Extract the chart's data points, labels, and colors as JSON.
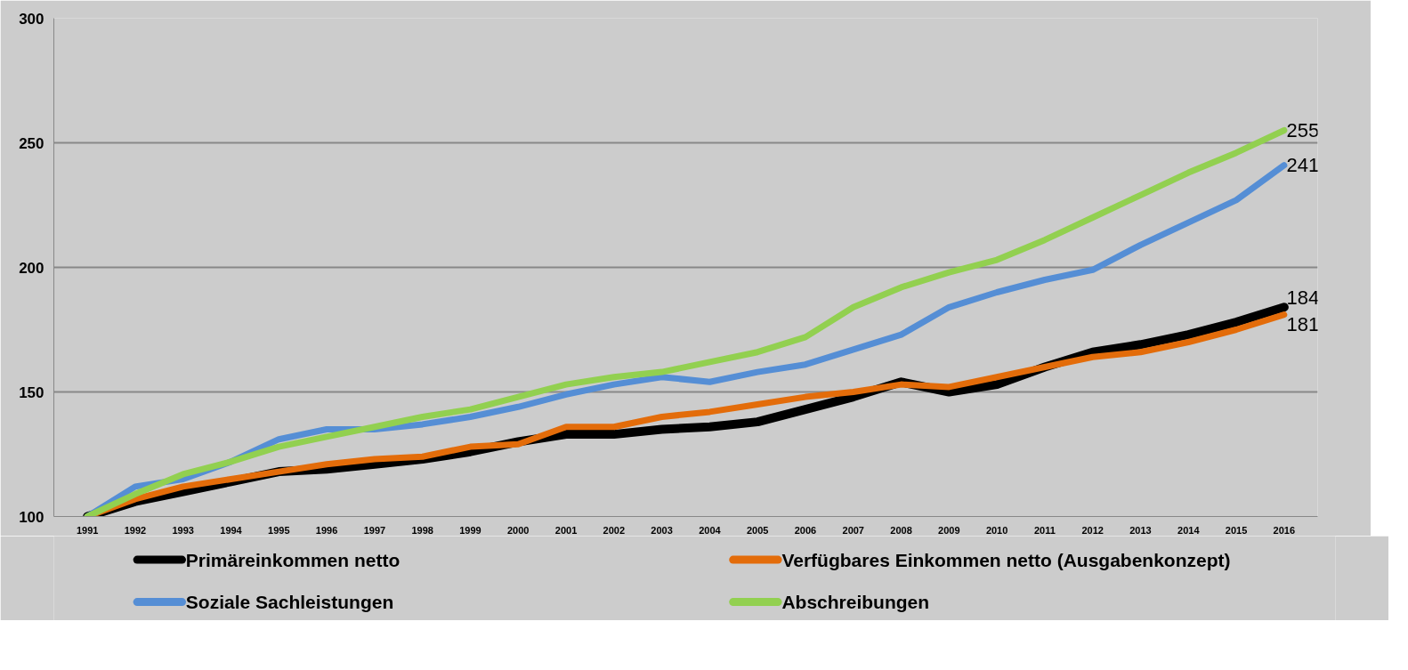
{
  "chart_data": {
    "type": "line",
    "categories": [
      "1991",
      "1992",
      "1993",
      "1994",
      "1995",
      "1996",
      "1997",
      "1998",
      "1999",
      "2000",
      "2001",
      "2002",
      "2003",
      "2004",
      "2005",
      "2006",
      "2007",
      "2008",
      "2009",
      "2010",
      "2011",
      "2012",
      "2013",
      "2014",
      "2015",
      "2016"
    ],
    "ylim": [
      100,
      300
    ],
    "yticks": [
      100,
      150,
      200,
      250,
      300
    ],
    "grid": "y",
    "legend": "bottom",
    "line_style": "solid",
    "series": [
      {
        "name": "Primäreinkommen netto",
        "color": "#000000",
        "values": [
          100,
          106,
          110,
          114,
          118,
          119,
          121,
          123,
          126,
          130,
          133,
          133,
          135,
          136,
          138,
          143,
          148,
          154,
          150,
          153,
          160,
          166,
          169,
          173,
          178,
          184
        ],
        "value_labels": [
          null,
          null,
          null,
          null,
          null,
          null,
          null,
          null,
          null,
          null,
          null,
          null,
          null,
          null,
          null,
          null,
          null,
          null,
          null,
          null,
          null,
          null,
          null,
          null,
          null,
          "184"
        ]
      },
      {
        "name": "Verfügbares Einkommen netto (Ausgabenkonzept)",
        "color": "#e36c0a",
        "values": [
          100,
          107,
          112,
          115,
          118,
          121,
          123,
          124,
          128,
          129,
          136,
          136,
          140,
          142,
          145,
          148,
          150,
          153,
          152,
          156,
          160,
          164,
          166,
          170,
          175,
          181
        ],
        "value_labels": [
          null,
          null,
          null,
          null,
          null,
          null,
          null,
          null,
          null,
          null,
          null,
          null,
          null,
          null,
          null,
          null,
          null,
          null,
          null,
          null,
          null,
          null,
          null,
          null,
          null,
          "181"
        ]
      },
      {
        "name": "Soziale Sachleistungen",
        "color": "#558ed5",
        "values": [
          100,
          112,
          115,
          122,
          131,
          135,
          135,
          137,
          140,
          144,
          149,
          153,
          156,
          154,
          158,
          161,
          167,
          173,
          184,
          190,
          195,
          199,
          209,
          218,
          227,
          241
        ],
        "value_labels": [
          null,
          null,
          null,
          null,
          null,
          null,
          null,
          null,
          null,
          null,
          null,
          null,
          null,
          null,
          null,
          null,
          null,
          null,
          null,
          null,
          null,
          null,
          null,
          null,
          null,
          "241"
        ]
      },
      {
        "name": "Abschreibungen",
        "color": "#92d050",
        "values": [
          100,
          109,
          117,
          122,
          128,
          132,
          136,
          140,
          143,
          148,
          153,
          156,
          158,
          162,
          166,
          172,
          184,
          192,
          198,
          203,
          211,
          220,
          229,
          238,
          246,
          255
        ],
        "value_labels": [
          null,
          null,
          null,
          null,
          null,
          null,
          null,
          null,
          null,
          null,
          null,
          null,
          null,
          null,
          null,
          null,
          null,
          null,
          null,
          null,
          null,
          null,
          null,
          null,
          null,
          "255"
        ]
      }
    ]
  }
}
